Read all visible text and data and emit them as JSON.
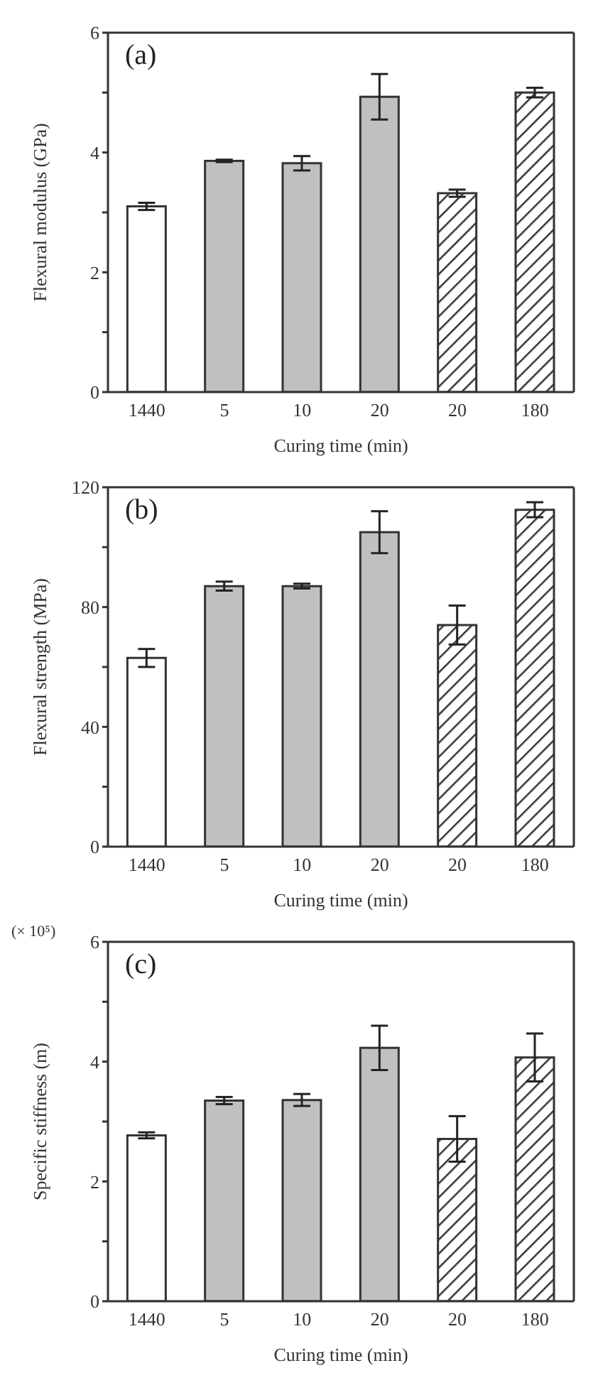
{
  "chart_data": [
    {
      "type": "bar",
      "annotations": [
        "(a)"
      ],
      "xlabel": "Curing time   (min)",
      "ylabel": "Flexural modulus   (GPa)",
      "categories": [
        "1440",
        "5",
        "10",
        "20",
        "20",
        "180"
      ],
      "values": [
        3.1,
        3.86,
        3.82,
        4.93,
        3.32,
        5.0
      ],
      "errors": [
        0.06,
        0.02,
        0.12,
        0.38,
        0.06,
        0.08
      ],
      "colors": [
        "#ffffff",
        "#c0c0c0",
        "#c0c0c0",
        "#c0c0c0",
        "#333333",
        "#333333"
      ],
      "ylim": [
        0,
        6
      ],
      "yticks": [
        0,
        {
          "value": 1,
          "label": null
        },
        2,
        {
          "value": 3,
          "label": null
        },
        4,
        {
          "value": 5,
          "label": null
        },
        6
      ],
      "grid": false
    },
    {
      "type": "bar",
      "annotations": [
        "(b)"
      ],
      "xlabel": "Curing time   (min)",
      "ylabel": "Flexural strength   (MPa)",
      "categories": [
        "1440",
        "5",
        "10",
        "20",
        "20",
        "180"
      ],
      "values": [
        63,
        87,
        87,
        105,
        74,
        112.5
      ],
      "errors": [
        3,
        1.5,
        0.8,
        7,
        6.5,
        2.5
      ],
      "colors": [
        "#ffffff",
        "#c0c0c0",
        "#c0c0c0",
        "#c0c0c0",
        "#333333",
        "#333333"
      ],
      "ylim": [
        0,
        120
      ],
      "yticks": [
        0,
        {
          "value": 20,
          "label": null
        },
        40,
        {
          "value": 60,
          "label": null
        },
        80,
        {
          "value": 100,
          "label": null
        },
        120
      ],
      "grid": false
    },
    {
      "type": "bar",
      "annotations": [
        "(c)",
        "(× 10⁵)"
      ],
      "xlabel": "Curing time   (min)",
      "ylabel": "Specific stiffness   (m)",
      "categories": [
        "1440",
        "5",
        "10",
        "20",
        "20",
        "180"
      ],
      "values": [
        2.77,
        3.35,
        3.36,
        4.23,
        2.71,
        4.07
      ],
      "errors": [
        0.05,
        0.06,
        0.1,
        0.37,
        0.38,
        0.4
      ],
      "colors": [
        "#ffffff",
        "#c0c0c0",
        "#c0c0c0",
        "#c0c0c0",
        "#333333",
        "#333333"
      ],
      "ylim": [
        0,
        6
      ],
      "yticks": [
        0,
        {
          "value": 1,
          "label": null
        },
        2,
        {
          "value": 3,
          "label": null
        },
        4,
        {
          "value": 5,
          "label": null
        },
        6
      ],
      "grid": false
    }
  ]
}
